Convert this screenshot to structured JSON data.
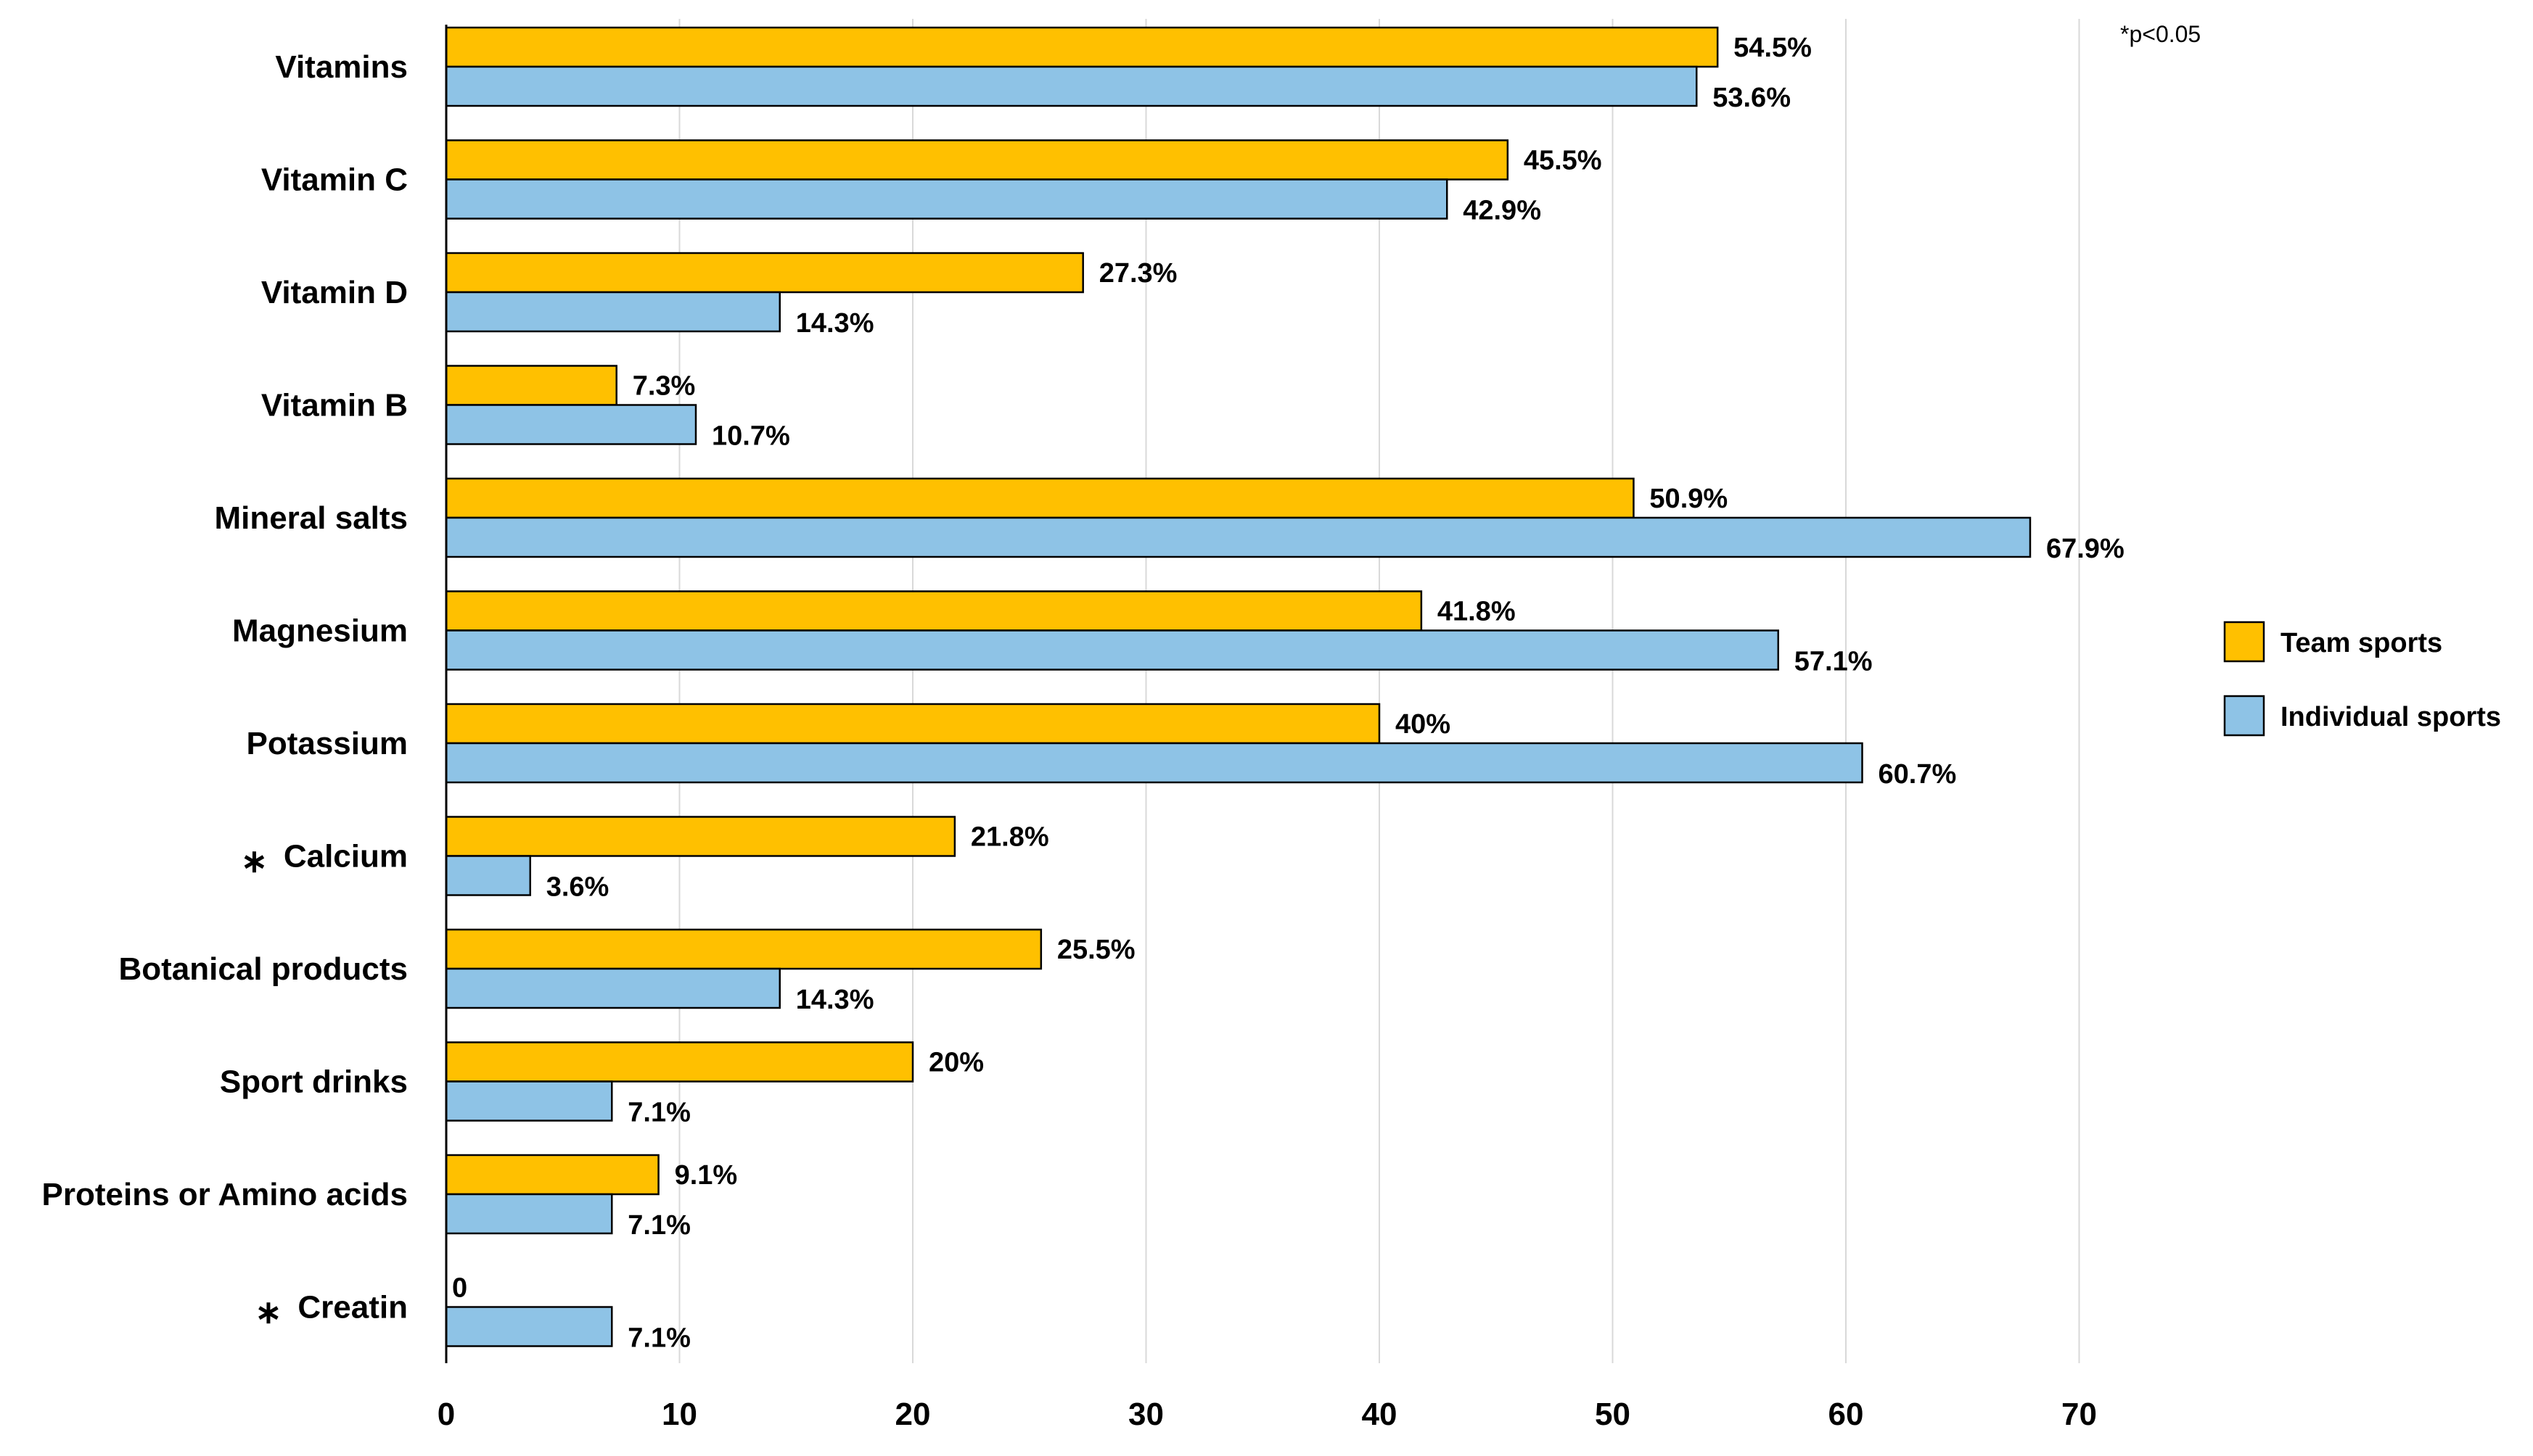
{
  "chart_data": {
    "type": "bar",
    "orientation": "horizontal",
    "title": "",
    "xlabel": "",
    "ylabel": "",
    "xlim": [
      0,
      70
    ],
    "x_ticks": [
      0,
      10,
      20,
      30,
      40,
      50,
      60,
      70
    ],
    "grid": true,
    "legend_position": "right",
    "note": "*p<0.05",
    "categories": [
      {
        "label": "Vitamins",
        "significant": false
      },
      {
        "label": "Vitamin C",
        "significant": false
      },
      {
        "label": "Vitamin D",
        "significant": false
      },
      {
        "label": "Vitamin B",
        "significant": false
      },
      {
        "label": "Mineral salts",
        "significant": false
      },
      {
        "label": "Magnesium",
        "significant": false
      },
      {
        "label": "Potassium",
        "significant": false
      },
      {
        "label": "Calcium",
        "significant": true
      },
      {
        "label": "Botanical products",
        "significant": false
      },
      {
        "label": "Sport drinks",
        "significant": false
      },
      {
        "label": "Proteins or Amino acids",
        "significant": false
      },
      {
        "label": "Creatin",
        "significant": true
      }
    ],
    "significance_marker": "∗",
    "series": [
      {
        "name": "Team sports",
        "color": "#FFC000",
        "values": [
          54.5,
          45.5,
          27.3,
          7.3,
          50.9,
          41.8,
          40,
          21.8,
          25.5,
          20,
          9.1,
          0
        ],
        "labels": [
          "54.5%",
          "45.5%",
          "27.3%",
          "7.3%",
          "50.9%",
          "41.8%",
          "40%",
          "21.8%",
          "25.5%",
          "20%",
          "9.1%",
          "0"
        ]
      },
      {
        "name": "Individual sports",
        "color": "#8EC3E6",
        "values": [
          53.6,
          42.9,
          14.3,
          10.7,
          67.9,
          57.1,
          60.7,
          3.6,
          14.3,
          7.1,
          7.1,
          7.1
        ],
        "labels": [
          "53.6%",
          "42.9%",
          "14.3%",
          "10.7%",
          "67.9%",
          "57.1%",
          "60.7%",
          "3.6%",
          "14.3%",
          "7.1%",
          "7.1%",
          "7.1%"
        ]
      }
    ]
  }
}
